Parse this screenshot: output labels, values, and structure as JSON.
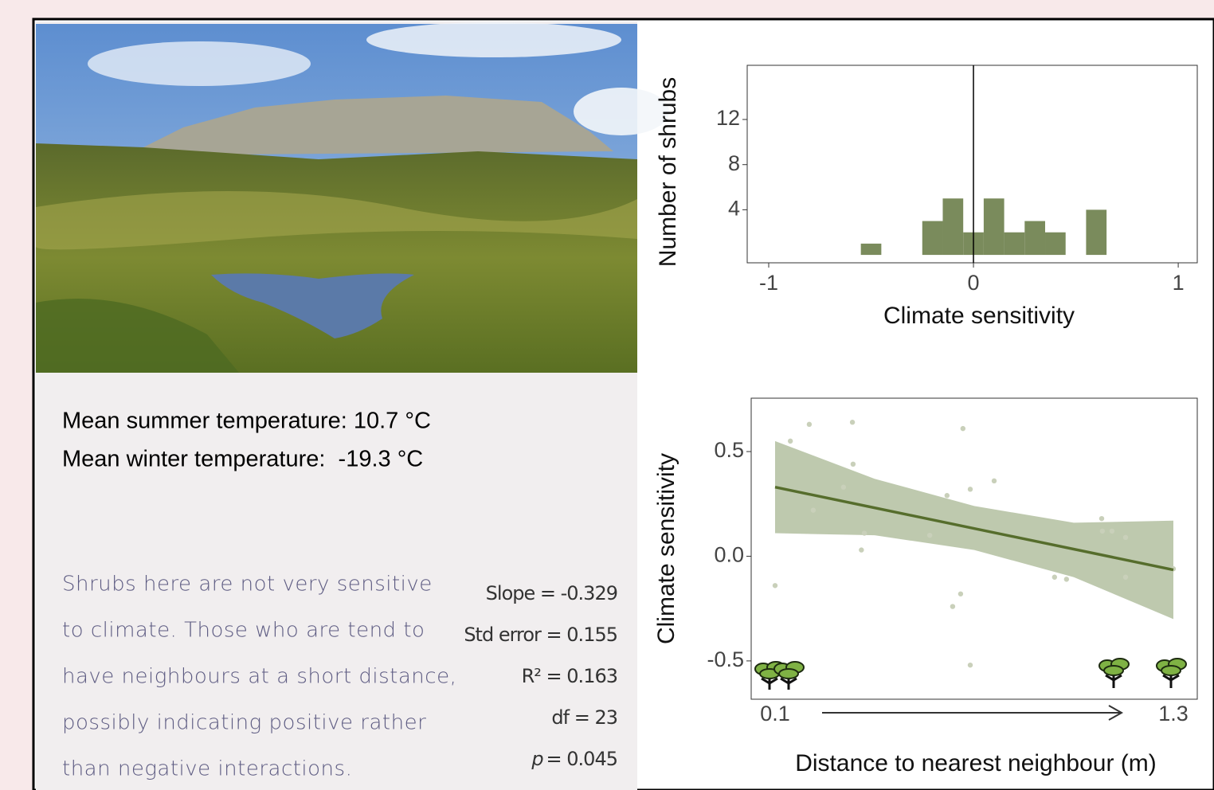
{
  "info": {
    "lines": [
      "Mean summer temperature: 10.7 °C",
      "Mean winter temperature:  -19.3 °C"
    ]
  },
  "description": {
    "lines": [
      "Shrubs here are not very sensitive",
      "to climate. Those who are tend to",
      "have neighbours at a short distance,",
      "possibly indicating positive rather",
      "than negative interactions."
    ]
  },
  "stats": {
    "lines": [
      "Slope = -0.329",
      "Std error = 0.155",
      "R² = 0.163",
      "df = 23"
    ],
    "p": {
      "symbol": "p",
      "text": "= 0.045"
    }
  },
  "chart_data": [
    {
      "type": "histogram",
      "x_label": "Climate sensitivity",
      "y_label": "Number of shrubs",
      "bins": [
        -0.55,
        -0.45,
        -0.35,
        -0.25,
        -0.15,
        -0.05,
        0.05,
        0.15,
        0.25,
        0.35,
        0.45,
        0.55,
        0.65
      ],
      "counts": [
        1,
        0,
        0,
        3,
        5,
        2,
        5,
        2,
        3,
        2,
        0,
        4
      ],
      "color": "#7a8b5c",
      "vline": 0,
      "xlim": [
        -1.105,
        1.093
      ],
      "xticks": [
        -1,
        0,
        1
      ],
      "ylim": [
        -0.7,
        16.8
      ],
      "yticks": [
        4,
        8,
        12
      ]
    },
    {
      "type": "scatter",
      "x_label": "Distance to nearest neighbour (m)",
      "y_label": "Climate sensitivity",
      "x": [
        0.1,
        0.146,
        0.203,
        0.215,
        0.306,
        0.333,
        0.335,
        0.369,
        0.36,
        0.566,
        0.618,
        0.666,
        0.688,
        0.659,
        0.635,
        0.688,
        0.76,
        0.942,
        0.978,
        1.084,
        1.086,
        1.115,
        1.156,
        1.156,
        1.3
      ],
      "y": [
        -0.14,
        0.55,
        0.63,
        0.22,
        0.33,
        0.64,
        0.44,
        0.11,
        0.03,
        0.1,
        0.29,
        0.61,
        0.32,
        -0.18,
        -0.24,
        -0.52,
        0.36,
        -0.1,
        -0.11,
        0.18,
        0.12,
        0.12,
        0.09,
        -0.1,
        -0.06
      ],
      "point_color": "#c9d0ba",
      "line_color": "#566d2c",
      "band_color": "#b3c0a0",
      "fit": {
        "x": [
          0.1,
          1.3
        ],
        "y": [
          0.33,
          -0.065
        ]
      },
      "band": {
        "x": [
          0.1,
          0.4,
          0.7,
          1.0,
          1.3
        ],
        "upper": [
          0.55,
          0.37,
          0.24,
          0.16,
          0.17
        ],
        "lower": [
          0.11,
          0.1,
          0.03,
          -0.1,
          -0.3
        ]
      },
      "xlim": [
        0.028,
        1.372
      ],
      "xticks": [
        0.1,
        1.3
      ],
      "ylim": [
        -0.683,
        0.755
      ],
      "yticks": [
        {
          "value": 0.5,
          "label": "0.5"
        },
        {
          "value": 0,
          "label": "0.0"
        },
        {
          "value": -0.5,
          "label": "-0.5"
        }
      ]
    }
  ]
}
